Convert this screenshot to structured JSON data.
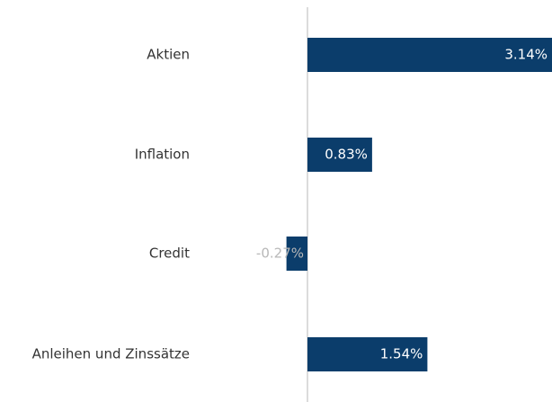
{
  "chart_data": {
    "type": "bar",
    "orientation": "horizontal",
    "categories": [
      "Aktien",
      "Inflation",
      "Credit",
      "Anleihen und Zinssätze"
    ],
    "values": [
      3.14,
      0.83,
      -0.27,
      1.54
    ],
    "value_labels": [
      "3.14%",
      "0.83%",
      "-0.27%",
      "1.54%"
    ],
    "color": "#0b3d6b"
  }
}
